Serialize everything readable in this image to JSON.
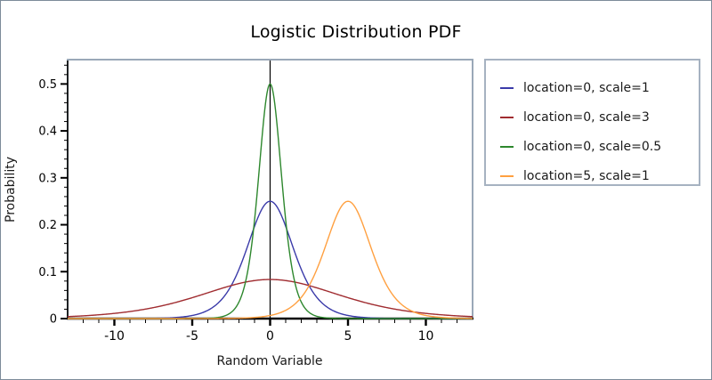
{
  "figure": {
    "title": "Logistic Distribution PDF"
  },
  "chart_data": {
    "type": "line",
    "title": "Logistic Distribution PDF",
    "xlabel": "Random Variable",
    "ylabel": "Probability",
    "xlim": [
      -13,
      13
    ],
    "ylim": [
      0,
      0.55
    ],
    "x_major_ticks": [
      -10,
      -5,
      0,
      5,
      10
    ],
    "x_minor_step": 1,
    "y_major_ticks": [
      0,
      0.1,
      0.2,
      0.3,
      0.4,
      0.5
    ],
    "y_minor_step": 0.02,
    "grid": false,
    "reference_line_x": 0,
    "legend_position": "right",
    "distribution": "logistic_pdf",
    "series": [
      {
        "label": "location=0, scale=1",
        "location": 0,
        "scale": 1,
        "peak_x": 0,
        "peak_value": 0.25,
        "color": "#3a3aa9"
      },
      {
        "label": "location=0, scale=3",
        "location": 0,
        "scale": 3,
        "peak_x": 0,
        "peak_value": 0.083,
        "color": "#a02c30"
      },
      {
        "label": "location=0, scale=0.5",
        "location": 0,
        "scale": 0.5,
        "peak_x": 0,
        "peak_value": 0.5,
        "color": "#2d872d"
      },
      {
        "label": "location=5, scale=1",
        "location": 5,
        "scale": 1,
        "peak_x": 5,
        "peak_value": 0.25,
        "color": "#ffa040"
      }
    ]
  },
  "colors": {
    "figure_border": "#7d8b99",
    "plot_frame": "#9aa8b8",
    "axis": "#000000",
    "reference_line": "#000000",
    "legend_border": "#a6b2c1",
    "background": "#ffffff"
  }
}
